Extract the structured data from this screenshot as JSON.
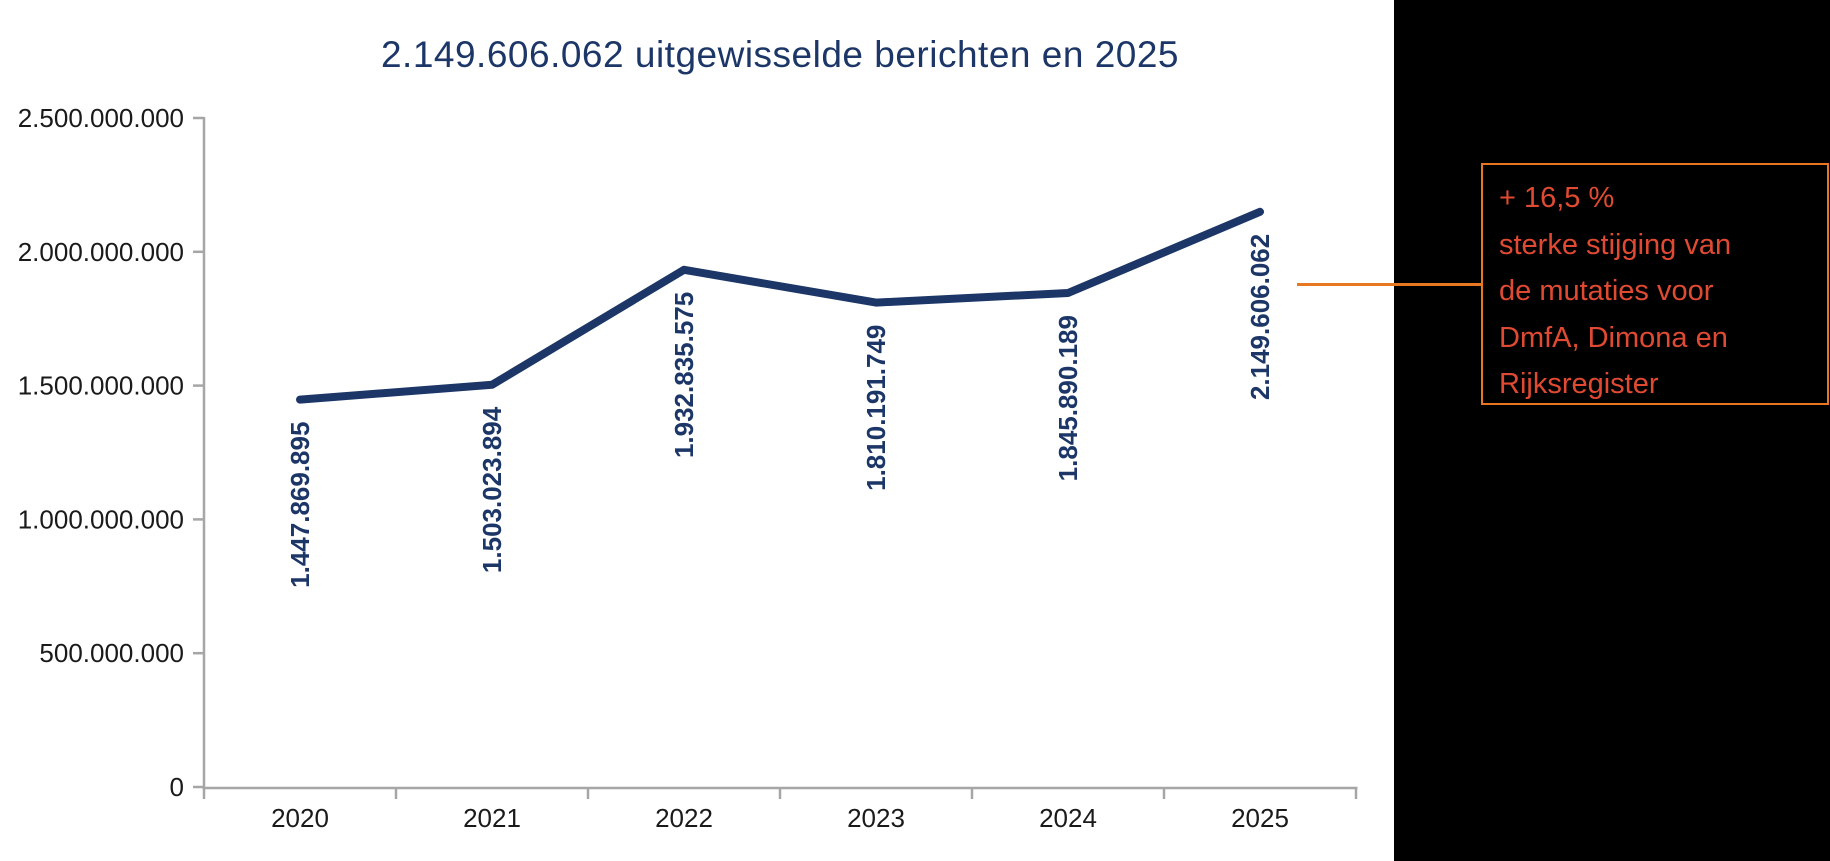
{
  "page": {
    "background": "#ffffff",
    "panel_color": "#000000"
  },
  "chart_data": {
    "type": "line",
    "title": "2.149.606.062 uitgewisselde berichten en 2025",
    "categories": [
      "2020",
      "2021",
      "2022",
      "2023",
      "2024",
      "2025"
    ],
    "values": [
      1447869895,
      1503023894,
      1932835575,
      1810191749,
      1845890189,
      2149606062
    ],
    "data_labels": [
      "1.447.869.895",
      "1.503.023.894",
      "1.932.835.575",
      "1.810.191.749",
      "1.845.890.189",
      "2.149.606.062"
    ],
    "xlabel": "",
    "ylabel": "",
    "ylim": [
      0,
      2500000000
    ],
    "ytick_values": [
      0,
      500000000,
      1000000000,
      1500000000,
      2000000000,
      2500000000
    ],
    "ytick_labels": [
      "0",
      "500.000.000",
      "1.000.000.000",
      "1.500.000.000",
      "2.000.000.000",
      "2.500.000.000"
    ],
    "grid": false,
    "legend": "none",
    "line_color": "#1c3667",
    "label_color": "#1c3667",
    "title_color": "#1c3667",
    "axis_color": "#a6a6a6",
    "tick_text_color": "#1a1a1a"
  },
  "annotation": {
    "lines": [
      "+ 16,5 %",
      "sterke stijging van",
      "de mutaties voor",
      "DmfA, Dimona en",
      "Rijksregister"
    ],
    "text_color": "#e04a32",
    "border_color": "#e87722",
    "connector_color": "#e87722"
  }
}
